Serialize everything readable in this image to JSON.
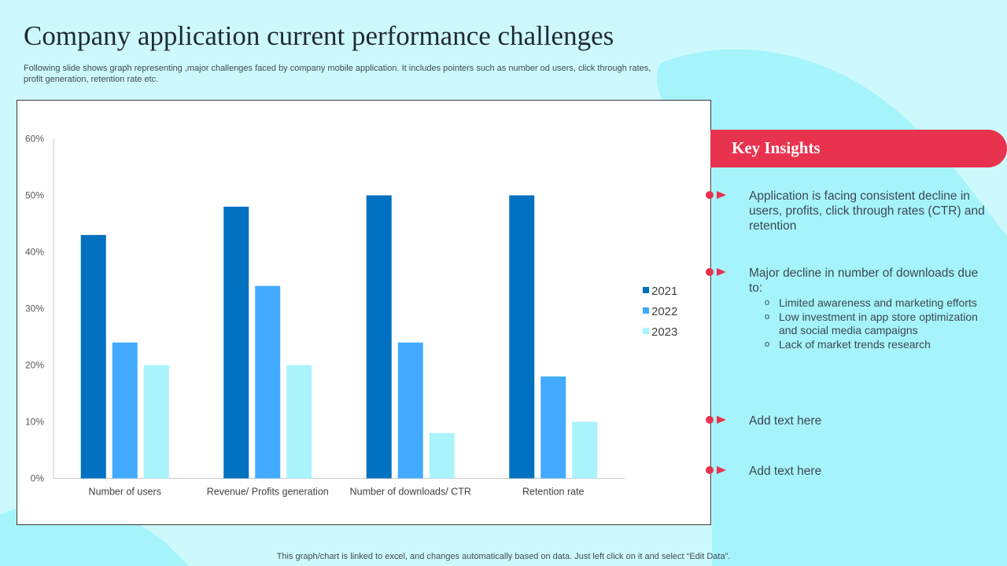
{
  "slide": {
    "title": "Company application current performance challenges",
    "subtitle": "Following slide shows graph representing ,major challenges faced by company mobile application. It includes pointers such as number od users, click through rates, profit generation, retention rate etc.",
    "footer": "This graph/chart is linked to excel,  and changes automatically based on data. Just left click on it and select “Edit Data”."
  },
  "colors": {
    "background": "#cdf9fd",
    "blob": "#a6f4fb",
    "accent": "#e8334f",
    "s2021": "#0070c0",
    "s2022": "#42aaff",
    "s2023": "#aaf3fb"
  },
  "chart_data": {
    "type": "bar",
    "title": "",
    "xlabel": "",
    "ylabel": "",
    "ylim": [
      0,
      60
    ],
    "yticks": [
      "0%",
      "10%",
      "20%",
      "30%",
      "40%",
      "50%",
      "60%"
    ],
    "categories": [
      "Number of users",
      "Revenue/ Profits generation",
      "Number of downloads/ CTR",
      "Retention rate"
    ],
    "series": [
      {
        "name": "2021",
        "values": [
          43,
          48,
          50,
          50
        ]
      },
      {
        "name": "2022",
        "values": [
          24,
          34,
          24,
          18
        ]
      },
      {
        "name": "2023",
        "values": [
          20,
          20,
          8,
          10
        ]
      }
    ],
    "legend": "right"
  },
  "insights": {
    "heading": "Key Insights",
    "items": [
      {
        "text": "Application is facing consistent decline in users, profits, click through rates (CTR) and retention"
      },
      {
        "text": "Major decline in number of downloads due to:",
        "sub_bullet": "o",
        "subitems": [
          "Limited awareness and marketing efforts",
          "Low investment in app store optimization and social media campaigns",
          "Lack of market trends research"
        ]
      },
      {
        "text": "Add text here"
      },
      {
        "text": "Add text here"
      }
    ]
  }
}
